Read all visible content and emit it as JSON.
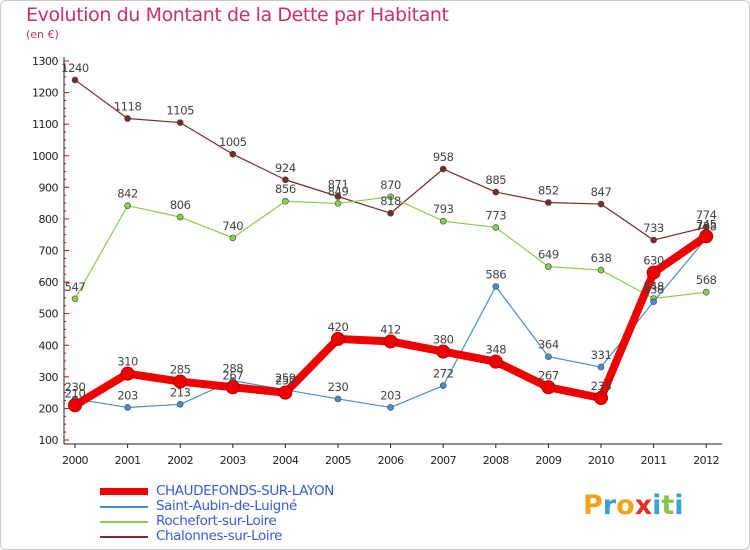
{
  "header": {
    "title": "Evolution du Montant de la Dette par Habitant",
    "unit": "(en €)"
  },
  "logo": {
    "letters": [
      "P",
      "r",
      "o",
      "x",
      "i",
      "t",
      "i"
    ],
    "colors": [
      "#f2a31b",
      "#3aa0d8",
      "#f2a31b",
      "#e0322c",
      "#3aa0d8",
      "#8bc34a",
      "#3aa0d8"
    ]
  },
  "chart_data": {
    "type": "line",
    "x": [
      "2000",
      "2001",
      "2002",
      "2003",
      "2004",
      "2005",
      "2006",
      "2007",
      "2008",
      "2009",
      "2010",
      "2011",
      "2012"
    ],
    "ylim": [
      100,
      1300
    ],
    "yticks": [
      "100",
      "200",
      "300",
      "400",
      "500",
      "600",
      "700",
      "800",
      "900",
      "1000",
      "1100",
      "1200",
      "1300"
    ],
    "grid": false,
    "legend_position": "bottom-left",
    "series": [
      {
        "name": "Chalonnes-sur-Loire",
        "color": "#7a2b2b",
        "values": [
          1240,
          1118,
          1105,
          1005,
          924,
          871,
          818,
          958,
          885,
          852,
          847,
          733,
          774
        ],
        "labels": [
          "1240",
          "1118",
          "1105",
          "1005",
          "924",
          "871",
          "818",
          "958",
          "885",
          "852",
          "847",
          "733",
          "774"
        ]
      },
      {
        "name": "Rochefort-sur-Loire",
        "color": "#88d04a",
        "values": [
          547,
          842,
          806,
          740,
          856,
          849,
          870,
          793,
          773,
          649,
          638,
          548,
          568
        ],
        "labels": [
          "547",
          "842",
          "806",
          "740",
          "856",
          "849",
          "870",
          "793",
          "773",
          "649",
          "638",
          "548",
          "568"
        ]
      },
      {
        "name": "Saint-Aubin-de-Luigné",
        "color": "#4a8ec6",
        "values": [
          230,
          203,
          213,
          288,
          259,
          230,
          203,
          272,
          586,
          364,
          331,
          538,
          738
        ],
        "labels": [
          "230",
          "203",
          "213",
          "288",
          "259",
          "230",
          "203",
          "272",
          "586",
          "364",
          "331",
          "538",
          "738"
        ]
      },
      {
        "name": "CHAUDEFONDS-SUR-LAYON",
        "color": "#ee0000",
        "values": [
          210,
          310,
          285,
          267,
          250,
          420,
          412,
          380,
          348,
          267,
          233,
          630,
          745
        ],
        "labels": [
          "210",
          "310",
          "285",
          "267",
          "250",
          "420",
          "412",
          "380",
          "348",
          "267",
          "233",
          "630",
          "745"
        ]
      }
    ],
    "legend_order": [
      3,
      2,
      1,
      0
    ]
  }
}
